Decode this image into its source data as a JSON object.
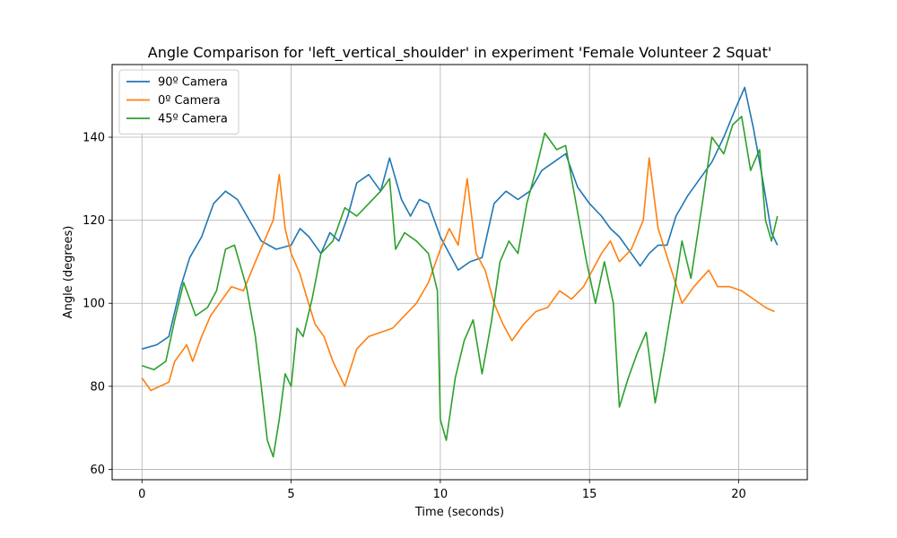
{
  "chart_data": {
    "type": "line",
    "title": "Angle Comparison for 'left_vertical_shoulder' in experiment 'Female Volunteer 2 Squat'",
    "xlabel": "Time (seconds)",
    "ylabel": "Angle (degrees)",
    "xlim": [
      -1.0,
      22.3
    ],
    "ylim": [
      57.5,
      157.5
    ],
    "xticks": [
      0,
      5,
      10,
      15,
      20
    ],
    "yticks": [
      60,
      80,
      100,
      120,
      140
    ],
    "grid": true,
    "legend_position": "upper-left",
    "series": [
      {
        "name": "90º Camera",
        "color": "#1f77b4",
        "points": [
          [
            0,
            89
          ],
          [
            0.5,
            90
          ],
          [
            0.9,
            92
          ],
          [
            1.3,
            104
          ],
          [
            1.6,
            111
          ],
          [
            2.0,
            116
          ],
          [
            2.4,
            124
          ],
          [
            2.8,
            127
          ],
          [
            3.2,
            125
          ],
          [
            3.6,
            120
          ],
          [
            4.0,
            115
          ],
          [
            4.5,
            113
          ],
          [
            5.0,
            114
          ],
          [
            5.3,
            118
          ],
          [
            5.6,
            116
          ],
          [
            6.0,
            112
          ],
          [
            6.3,
            117
          ],
          [
            6.6,
            115
          ],
          [
            6.9,
            121
          ],
          [
            7.2,
            129
          ],
          [
            7.6,
            131
          ],
          [
            8.0,
            127
          ],
          [
            8.3,
            135
          ],
          [
            8.7,
            125
          ],
          [
            9.0,
            121
          ],
          [
            9.3,
            125
          ],
          [
            9.6,
            124
          ],
          [
            10.0,
            116
          ],
          [
            10.3,
            112
          ],
          [
            10.6,
            108
          ],
          [
            11.0,
            110
          ],
          [
            11.4,
            111
          ],
          [
            11.8,
            124
          ],
          [
            12.2,
            127
          ],
          [
            12.6,
            125
          ],
          [
            13.0,
            127
          ],
          [
            13.4,
            132
          ],
          [
            13.8,
            134
          ],
          [
            14.2,
            136
          ],
          [
            14.6,
            128
          ],
          [
            15.0,
            124
          ],
          [
            15.4,
            121
          ],
          [
            15.7,
            118
          ],
          [
            16.0,
            116
          ],
          [
            16.4,
            112
          ],
          [
            16.7,
            109
          ],
          [
            17.0,
            112
          ],
          [
            17.3,
            114
          ],
          [
            17.6,
            114
          ],
          [
            17.9,
            121
          ],
          [
            18.3,
            126
          ],
          [
            18.7,
            130
          ],
          [
            19.1,
            134
          ],
          [
            19.5,
            140
          ],
          [
            19.9,
            147
          ],
          [
            20.2,
            152
          ],
          [
            20.5,
            142
          ],
          [
            20.8,
            130
          ],
          [
            21.1,
            117
          ],
          [
            21.3,
            114
          ]
        ]
      },
      {
        "name": "0º Camera",
        "color": "#ff7f0e",
        "points": [
          [
            0,
            82
          ],
          [
            0.3,
            79
          ],
          [
            0.6,
            80
          ],
          [
            0.9,
            81
          ],
          [
            1.1,
            86
          ],
          [
            1.3,
            88
          ],
          [
            1.5,
            90
          ],
          [
            1.7,
            86
          ],
          [
            2.0,
            92
          ],
          [
            2.3,
            97
          ],
          [
            2.6,
            100
          ],
          [
            3.0,
            104
          ],
          [
            3.4,
            103
          ],
          [
            3.8,
            110
          ],
          [
            4.1,
            115
          ],
          [
            4.4,
            120
          ],
          [
            4.6,
            131
          ],
          [
            4.8,
            118
          ],
          [
            5.0,
            112
          ],
          [
            5.3,
            107
          ],
          [
            5.5,
            102
          ],
          [
            5.8,
            95
          ],
          [
            6.1,
            92
          ],
          [
            6.4,
            86
          ],
          [
            6.8,
            80
          ],
          [
            7.2,
            89
          ],
          [
            7.6,
            92
          ],
          [
            8.0,
            93
          ],
          [
            8.4,
            94
          ],
          [
            8.8,
            97
          ],
          [
            9.2,
            100
          ],
          [
            9.6,
            105
          ],
          [
            10.0,
            113
          ],
          [
            10.3,
            118
          ],
          [
            10.6,
            114
          ],
          [
            10.9,
            130
          ],
          [
            11.2,
            112
          ],
          [
            11.5,
            108
          ],
          [
            11.8,
            100
          ],
          [
            12.1,
            95
          ],
          [
            12.4,
            91
          ],
          [
            12.8,
            95
          ],
          [
            13.2,
            98
          ],
          [
            13.6,
            99
          ],
          [
            14.0,
            103
          ],
          [
            14.4,
            101
          ],
          [
            14.8,
            104
          ],
          [
            15.1,
            108
          ],
          [
            15.4,
            112
          ],
          [
            15.7,
            115
          ],
          [
            16.0,
            110
          ],
          [
            16.4,
            113
          ],
          [
            16.8,
            120
          ],
          [
            17.0,
            135
          ],
          [
            17.3,
            118
          ],
          [
            17.7,
            109
          ],
          [
            18.1,
            100
          ],
          [
            18.5,
            104
          ],
          [
            19.0,
            108
          ],
          [
            19.3,
            104
          ],
          [
            19.7,
            104
          ],
          [
            20.1,
            103
          ],
          [
            20.5,
            101
          ],
          [
            20.9,
            99
          ],
          [
            21.2,
            98
          ]
        ]
      },
      {
        "name": "45º Camera",
        "color": "#2ca02c",
        "points": [
          [
            0,
            85
          ],
          [
            0.4,
            84
          ],
          [
            0.8,
            86
          ],
          [
            1.1,
            96
          ],
          [
            1.4,
            105
          ],
          [
            1.8,
            97
          ],
          [
            2.2,
            99
          ],
          [
            2.5,
            103
          ],
          [
            2.8,
            113
          ],
          [
            3.1,
            114
          ],
          [
            3.5,
            104
          ],
          [
            3.8,
            92
          ],
          [
            4.0,
            80
          ],
          [
            4.2,
            67
          ],
          [
            4.4,
            63
          ],
          [
            4.6,
            72
          ],
          [
            4.8,
            83
          ],
          [
            5.0,
            80
          ],
          [
            5.2,
            94
          ],
          [
            5.4,
            92
          ],
          [
            5.7,
            101
          ],
          [
            6.0,
            112
          ],
          [
            6.4,
            115
          ],
          [
            6.8,
            123
          ],
          [
            7.2,
            121
          ],
          [
            7.6,
            124
          ],
          [
            8.0,
            127
          ],
          [
            8.3,
            130
          ],
          [
            8.5,
            113
          ],
          [
            8.8,
            117
          ],
          [
            9.2,
            115
          ],
          [
            9.6,
            112
          ],
          [
            9.9,
            103
          ],
          [
            10.0,
            72
          ],
          [
            10.2,
            67
          ],
          [
            10.5,
            82
          ],
          [
            10.8,
            91
          ],
          [
            11.1,
            96
          ],
          [
            11.4,
            83
          ],
          [
            11.7,
            95
          ],
          [
            12.0,
            110
          ],
          [
            12.3,
            115
          ],
          [
            12.6,
            112
          ],
          [
            12.9,
            124
          ],
          [
            13.2,
            132
          ],
          [
            13.5,
            141
          ],
          [
            13.9,
            137
          ],
          [
            14.2,
            138
          ],
          [
            14.6,
            122
          ],
          [
            14.9,
            110
          ],
          [
            15.2,
            100
          ],
          [
            15.5,
            110
          ],
          [
            15.8,
            100
          ],
          [
            16.0,
            75
          ],
          [
            16.3,
            82
          ],
          [
            16.6,
            88
          ],
          [
            16.9,
            93
          ],
          [
            17.2,
            76
          ],
          [
            17.5,
            88
          ],
          [
            17.8,
            101
          ],
          [
            18.1,
            115
          ],
          [
            18.4,
            106
          ],
          [
            18.8,
            125
          ],
          [
            19.1,
            140
          ],
          [
            19.5,
            136
          ],
          [
            19.8,
            143
          ],
          [
            20.1,
            145
          ],
          [
            20.4,
            132
          ],
          [
            20.7,
            137
          ],
          [
            20.9,
            120
          ],
          [
            21.1,
            115
          ],
          [
            21.3,
            121
          ]
        ]
      }
    ]
  }
}
